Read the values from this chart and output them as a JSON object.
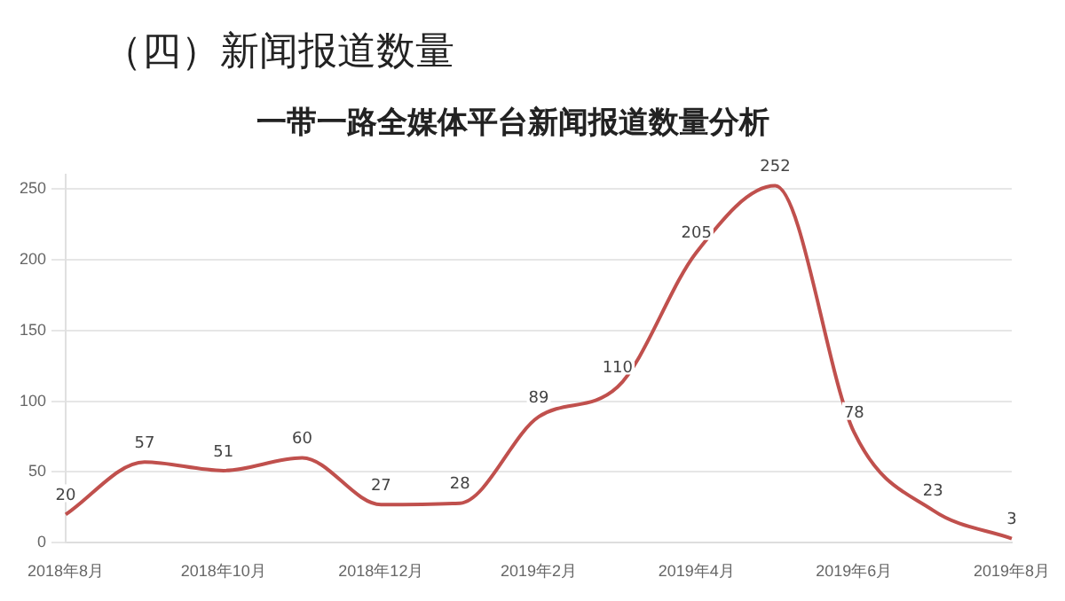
{
  "chart_data": {
    "type": "line",
    "title": "一带一路全媒体平台新闻报道数量分析",
    "annotations": [
      "（四）新闻报道数量"
    ],
    "categories": [
      "2018年8月",
      null,
      "2018年10月",
      null,
      "2018年12月",
      null,
      "2019年2月",
      null,
      "2019年4月",
      null,
      "2019年6月",
      null,
      "2019年8月"
    ],
    "series": [
      {
        "color": "#c0504d",
        "values": [
          20,
          57,
          51,
          60,
          27,
          28,
          89,
          110,
          205,
          252,
          78,
          23,
          3
        ]
      }
    ],
    "ylim": [
      0,
      260
    ],
    "yticks": [
      0,
      50,
      100,
      150,
      200,
      250
    ],
    "grid": "y",
    "data_labels": true,
    "legend": false,
    "marker": "none",
    "line_style": "solid"
  }
}
